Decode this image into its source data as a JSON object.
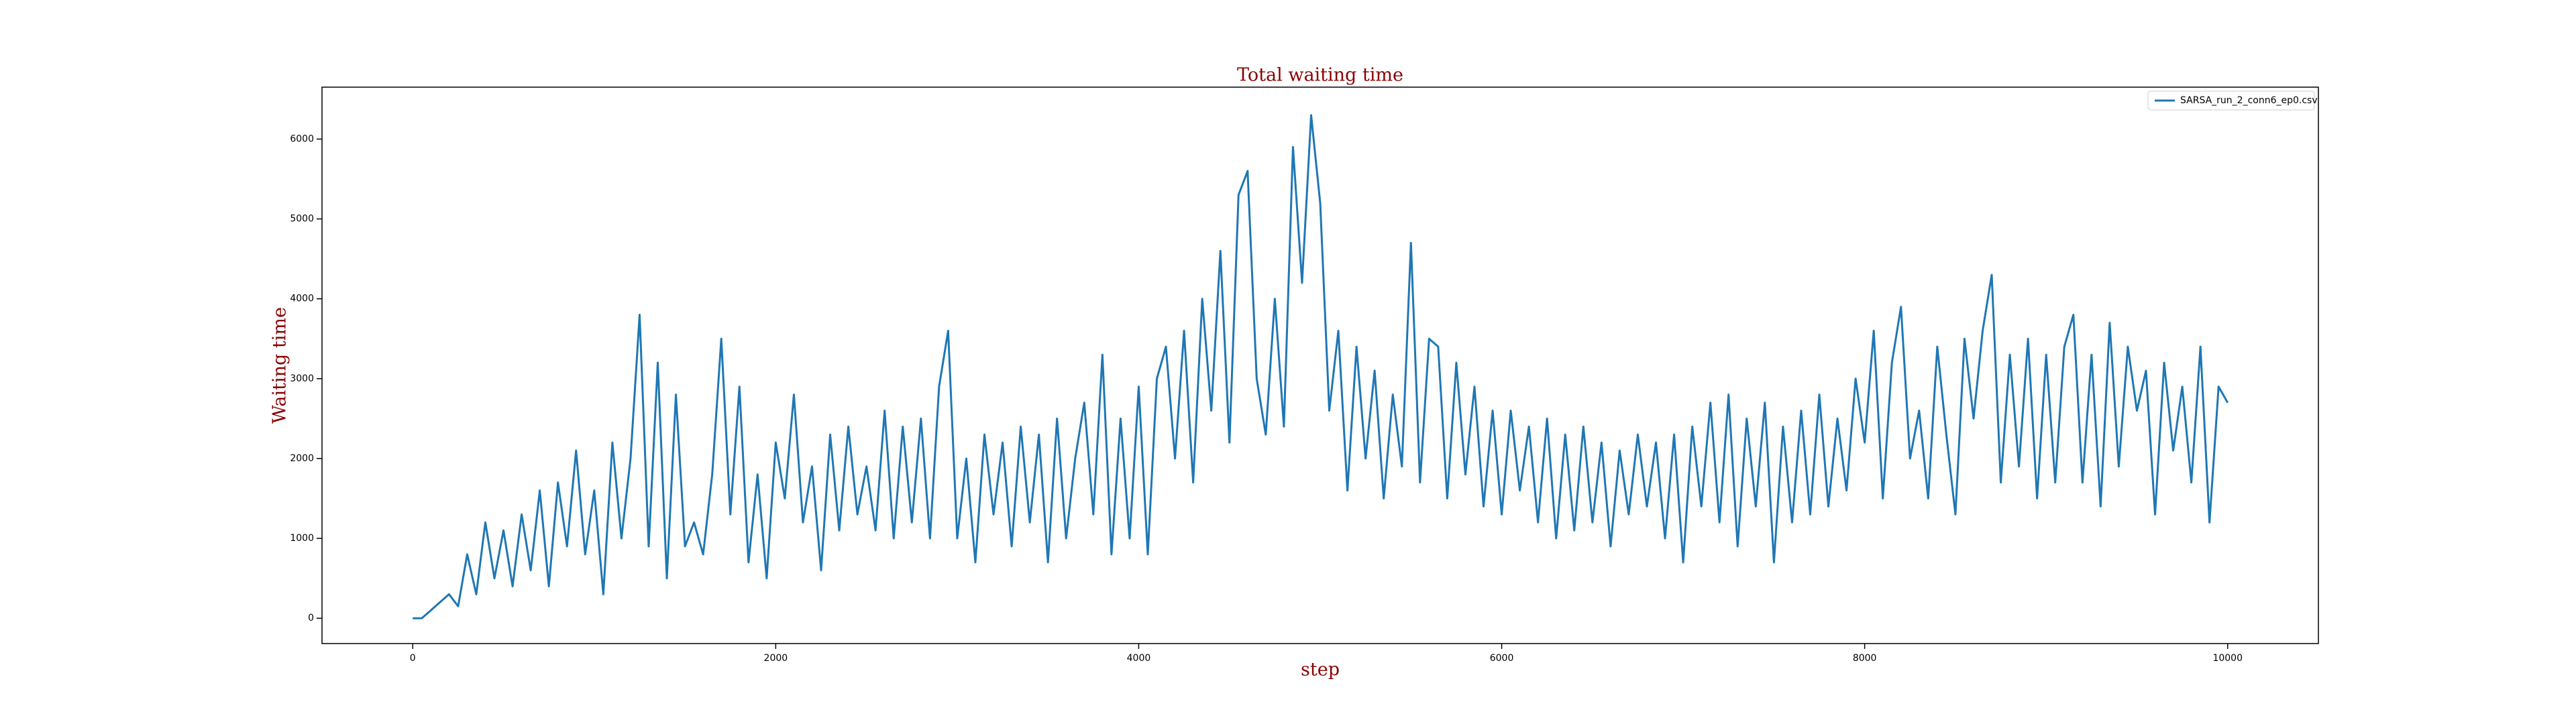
{
  "chart_data": {
    "type": "line",
    "title": "Total waiting time",
    "xlabel": "step",
    "ylabel": "Waiting time",
    "x": [
      0,
      50,
      100,
      150,
      200,
      250,
      300,
      350,
      400,
      450,
      500,
      550,
      600,
      650,
      700,
      750,
      800,
      850,
      900,
      950,
      1000,
      1050,
      1100,
      1150,
      1200,
      1250,
      1300,
      1350,
      1400,
      1450,
      1500,
      1550,
      1600,
      1650,
      1700,
      1750,
      1800,
      1850,
      1900,
      1950,
      2000,
      2050,
      2100,
      2150,
      2200,
      2250,
      2300,
      2350,
      2400,
      2450,
      2500,
      2550,
      2600,
      2650,
      2700,
      2750,
      2800,
      2850,
      2900,
      2950,
      3000,
      3050,
      3100,
      3150,
      3200,
      3250,
      3300,
      3350,
      3400,
      3450,
      3500,
      3550,
      3600,
      3650,
      3700,
      3750,
      3800,
      3850,
      3900,
      3950,
      4000,
      4050,
      4100,
      4150,
      4200,
      4250,
      4300,
      4350,
      4400,
      4450,
      4500,
      4550,
      4600,
      4650,
      4700,
      4750,
      4800,
      4850,
      4900,
      4950,
      5000,
      5050,
      5100,
      5150,
      5200,
      5250,
      5300,
      5350,
      5400,
      5450,
      5500,
      5550,
      5600,
      5650,
      5700,
      5750,
      5800,
      5850,
      5900,
      5950,
      6000,
      6050,
      6100,
      6150,
      6200,
      6250,
      6300,
      6350,
      6400,
      6450,
      6500,
      6550,
      6600,
      6650,
      6700,
      6750,
      6800,
      6850,
      6900,
      6950,
      7000,
      7050,
      7100,
      7150,
      7200,
      7250,
      7300,
      7350,
      7400,
      7450,
      7500,
      7550,
      7600,
      7650,
      7700,
      7750,
      7800,
      7850,
      7900,
      7950,
      8000,
      8050,
      8100,
      8150,
      8200,
      8250,
      8300,
      8350,
      8400,
      8450,
      8500,
      8550,
      8600,
      8650,
      8700,
      8750,
      8800,
      8850,
      8900,
      8950,
      9000,
      9050,
      9100,
      9150,
      9200,
      9250,
      9300,
      9350,
      9400,
      9450,
      9500,
      9550,
      9600,
      9650,
      9700,
      9750,
      9800,
      9850,
      9900,
      9950,
      10000
    ],
    "series": [
      {
        "name": "SARSA_run_2_conn6_ep0.csv",
        "color": "#1f77b4",
        "values": [
          0,
          0,
          100,
          200,
          300,
          150,
          800,
          300,
          1200,
          500,
          1100,
          400,
          1300,
          600,
          1600,
          400,
          1700,
          900,
          2100,
          800,
          1600,
          300,
          2200,
          1000,
          2000,
          3800,
          900,
          3200,
          500,
          2800,
          900,
          1200,
          800,
          1800,
          3500,
          1300,
          2900,
          700,
          1800,
          500,
          2200,
          1500,
          2800,
          1200,
          1900,
          600,
          2300,
          1100,
          2400,
          1300,
          1900,
          1100,
          2600,
          1000,
          2400,
          1200,
          2500,
          1000,
          2900,
          3600,
          1000,
          2000,
          700,
          2300,
          1300,
          2200,
          900,
          2400,
          1200,
          2300,
          700,
          2500,
          1000,
          2000,
          2700,
          1300,
          3300,
          800,
          2500,
          1000,
          2900,
          800,
          3000,
          3400,
          2000,
          3600,
          1700,
          4000,
          2600,
          4600,
          2200,
          5300,
          5600,
          3000,
          2300,
          4000,
          2400,
          5900,
          4200,
          6300,
          5200,
          2600,
          3600,
          1600,
          3400,
          2000,
          3100,
          1500,
          2800,
          1900,
          4700,
          1700,
          3500,
          3400,
          1500,
          3200,
          1800,
          2900,
          1400,
          2600,
          1300,
          2600,
          1600,
          2400,
          1200,
          2500,
          1000,
          2300,
          1100,
          2400,
          1200,
          2200,
          900,
          2100,
          1300,
          2300,
          1400,
          2200,
          1000,
          2300,
          700,
          2400,
          1400,
          2700,
          1200,
          2800,
          900,
          2500,
          1400,
          2700,
          700,
          2400,
          1200,
          2600,
          1300,
          2800,
          1400,
          2500,
          1600,
          3000,
          2200,
          3600,
          1500,
          3200,
          3900,
          2000,
          2600,
          1500,
          3400,
          2300,
          1300,
          3500,
          2500,
          3600,
          4300,
          1700,
          3300,
          1900,
          3500,
          1500,
          3300,
          1700,
          3400,
          3800,
          1700,
          3300,
          1400,
          3700,
          1900,
          3400,
          2600,
          3100,
          1300,
          3200,
          2100,
          2900,
          1700,
          3400,
          1200,
          2900,
          2700
        ]
      }
    ],
    "xlim": [
      -500,
      10500
    ],
    "ylim": [
      -317,
      6650
    ],
    "xticks": [
      0,
      2000,
      4000,
      6000,
      8000,
      10000
    ],
    "yticks": [
      0,
      1000,
      2000,
      3000,
      4000,
      5000,
      6000
    ],
    "legend": "upper right"
  }
}
